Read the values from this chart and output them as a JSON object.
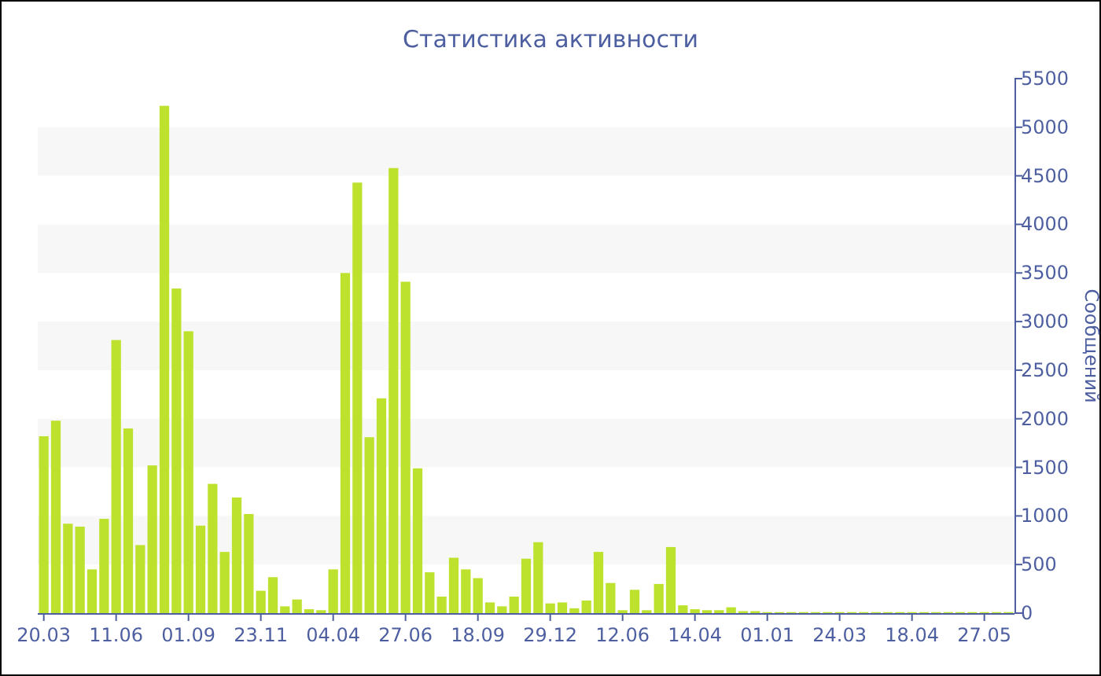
{
  "chart_data": {
    "type": "bar",
    "title": "Статистика активности",
    "ylabel": "Сообщений",
    "categories": [
      "20.03",
      null,
      null,
      null,
      null,
      null,
      "11.06",
      null,
      null,
      null,
      null,
      null,
      "01.09",
      null,
      null,
      null,
      null,
      null,
      "23.11",
      null,
      null,
      null,
      null,
      null,
      "04.04",
      null,
      null,
      null,
      null,
      null,
      "27.06",
      null,
      null,
      null,
      null,
      null,
      "18.09",
      null,
      null,
      null,
      null,
      null,
      "29.12",
      null,
      null,
      null,
      null,
      null,
      "12.06",
      null,
      null,
      null,
      null,
      null,
      "14.04",
      null,
      null,
      null,
      null,
      null,
      "01.01",
      null,
      null,
      null,
      null,
      null,
      "24.03",
      null,
      null,
      null,
      null,
      null,
      "18.04",
      null,
      null,
      null,
      null,
      null,
      "27.05",
      null,
      null
    ],
    "values": [
      1820,
      1980,
      920,
      890,
      450,
      970,
      2810,
      1900,
      700,
      1520,
      5220,
      3340,
      2900,
      900,
      1330,
      630,
      1190,
      1020,
      230,
      370,
      70,
      140,
      40,
      30,
      450,
      3500,
      4430,
      1810,
      2210,
      4580,
      3410,
      1490,
      420,
      170,
      570,
      450,
      360,
      110,
      70,
      170,
      560,
      730,
      100,
      110,
      50,
      130,
      630,
      310,
      30,
      240,
      30,
      300,
      680,
      80,
      40,
      30,
      30,
      60,
      20,
      20,
      10,
      10,
      10,
      10,
      10,
      10,
      10,
      10,
      10,
      10,
      10,
      10,
      10,
      10,
      10,
      10,
      10,
      10,
      10,
      10,
      10
    ],
    "color": "#bde22e",
    "ylim": [
      0,
      5500
    ],
    "yticks": [
      0,
      500,
      1000,
      1500,
      2000,
      2500,
      3000,
      3500,
      4000,
      4500,
      5000,
      5500
    ],
    "bands": [
      {
        "axis": "y",
        "from": 500,
        "to": 1000,
        "color": "#f7f7f7"
      },
      {
        "axis": "y",
        "from": 1500,
        "to": 2000,
        "color": "#f7f7f7"
      },
      {
        "axis": "y",
        "from": 2500,
        "to": 3000,
        "color": "#f7f7f7"
      },
      {
        "axis": "y",
        "from": 3500,
        "to": 4000,
        "color": "#f7f7f7"
      },
      {
        "axis": "y",
        "from": 4500,
        "to": 5000,
        "color": "#f7f7f7"
      }
    ]
  }
}
